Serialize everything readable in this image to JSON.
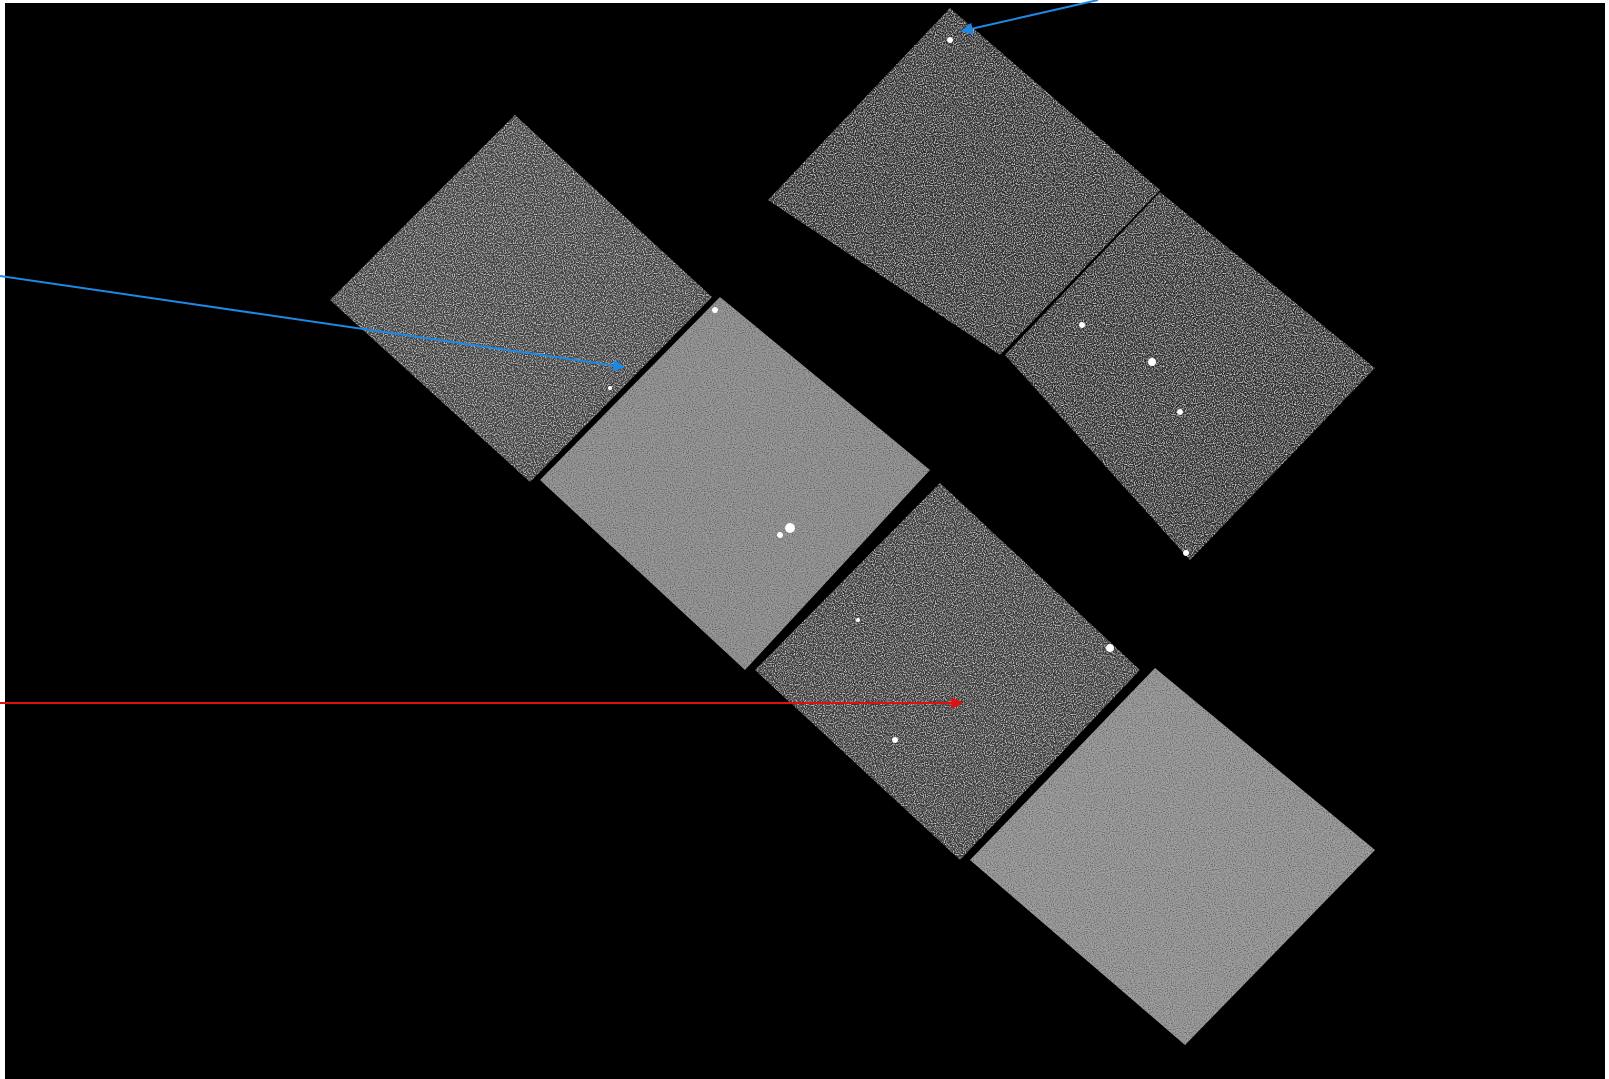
{
  "image": {
    "background_color": "#000000",
    "frame_color": "#ffffff"
  },
  "chips": [
    {
      "name": "upper-left-faint-chip",
      "brightness": "faint"
    },
    {
      "name": "central-bright-chip",
      "brightness": "bright"
    },
    {
      "name": "central-faint-chip",
      "brightness": "faint"
    },
    {
      "name": "lower-right-bright-chip",
      "brightness": "bright"
    },
    {
      "name": "upper-right-faint-chip-top",
      "brightness": "faint"
    },
    {
      "name": "upper-right-faint-chip-bottom",
      "brightness": "faint"
    }
  ],
  "arrows": [
    {
      "name": "blue-arrow-top-right",
      "color": "#1e88e5"
    },
    {
      "name": "blue-arrow-left",
      "color": "#1e88e5"
    },
    {
      "name": "red-arrow-left",
      "color": "#e01010"
    }
  ]
}
